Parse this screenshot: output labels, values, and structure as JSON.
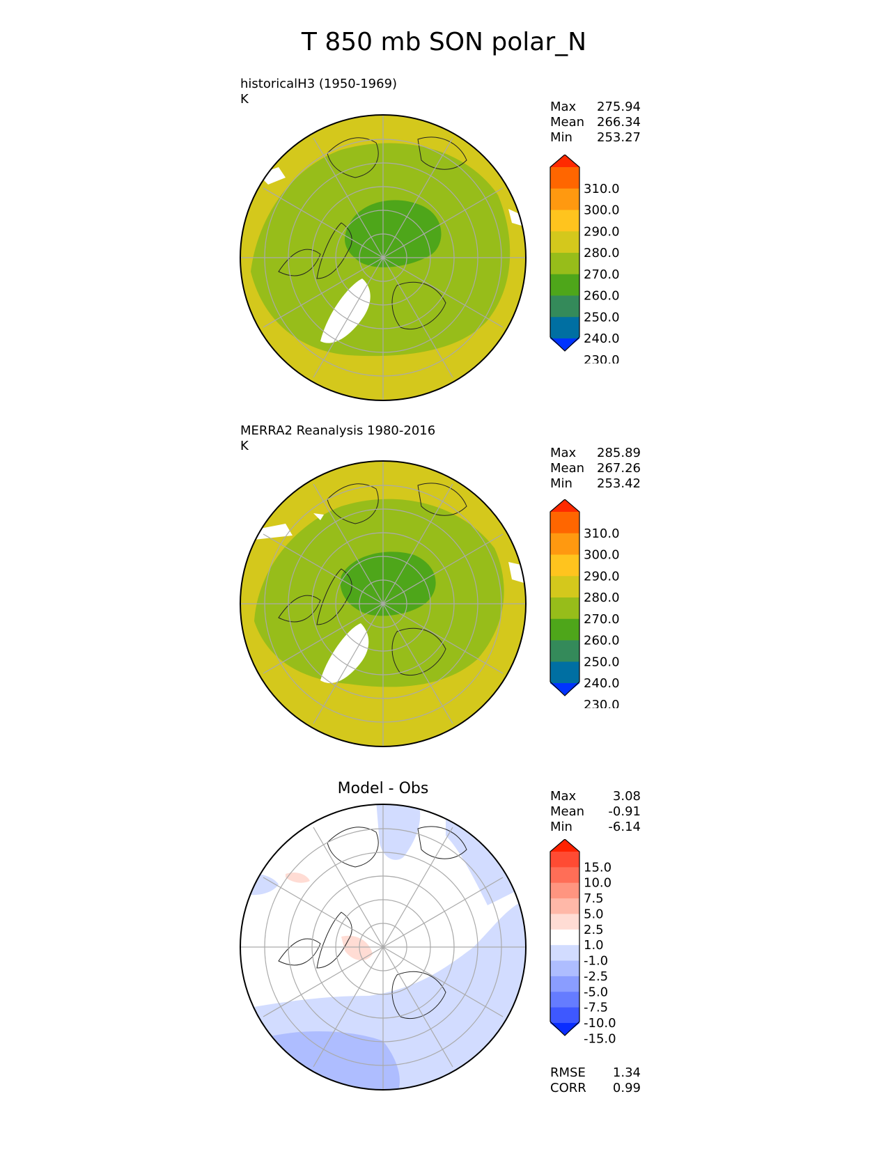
{
  "title": "T 850 mb SON polar_N",
  "panels": {
    "model": {
      "label": "historicalH3 (1950-1969)",
      "units": "K",
      "stats": {
        "max_label": "Max",
        "max": "275.94",
        "mean_label": "Mean",
        "mean": "266.34",
        "min_label": "Min",
        "min": "253.27"
      }
    },
    "obs": {
      "label": "MERRA2 Reanalysis 1980-2016",
      "units": "K",
      "stats": {
        "max_label": "Max",
        "max": "285.89",
        "mean_label": "Mean",
        "mean": "267.26",
        "min_label": "Min",
        "min": "253.42"
      }
    },
    "diff": {
      "label": "Model - Obs",
      "stats": {
        "max_label": "Max",
        "max": "3.08",
        "mean_label": "Mean",
        "mean": "-0.91",
        "min_label": "Min",
        "min": "-6.14"
      },
      "metrics": {
        "rmse_label": "RMSE",
        "rmse": "1.34",
        "corr_label": "CORR",
        "corr": "0.99"
      }
    }
  },
  "colorbars": {
    "temperature": {
      "ticks": [
        "310.0",
        "300.0",
        "290.0",
        "280.0",
        "270.0",
        "260.0",
        "250.0",
        "240.0",
        "230.0"
      ],
      "colors": [
        "#ff2a00",
        "#ff6600",
        "#ff9910",
        "#ffc41e",
        "#d4c81c",
        "#97bd1a",
        "#4ea61a",
        "#348a5a",
        "#006fa2",
        "#0033ff"
      ]
    },
    "difference": {
      "ticks": [
        "15.0",
        "10.0",
        "7.5",
        "5.0",
        "2.5",
        "1.0",
        "-1.0",
        "-2.5",
        "-5.0",
        "-7.5",
        "-10.0",
        "-15.0"
      ],
      "colors": [
        "#ff2200",
        "#ff4b33",
        "#ff6e57",
        "#ff9580",
        "#ffb8a8",
        "#ffdcd4",
        "#ffffff",
        "#d2dcff",
        "#aebdff",
        "#8a9dff",
        "#657cff",
        "#3e58ff",
        "#0a2dff"
      ]
    }
  },
  "chart_data": {
    "type": "map",
    "projection": "north polar stereographic",
    "variable": "T 850 mb",
    "season": "SON",
    "units": "K",
    "contour_levels_T": [
      230,
      240,
      250,
      260,
      270,
      280,
      290,
      300,
      310
    ],
    "contour_levels_diff": [
      -15,
      -10,
      -7.5,
      -5,
      -2.5,
      -1,
      1,
      2.5,
      5,
      7.5,
      10,
      15
    ]
  }
}
